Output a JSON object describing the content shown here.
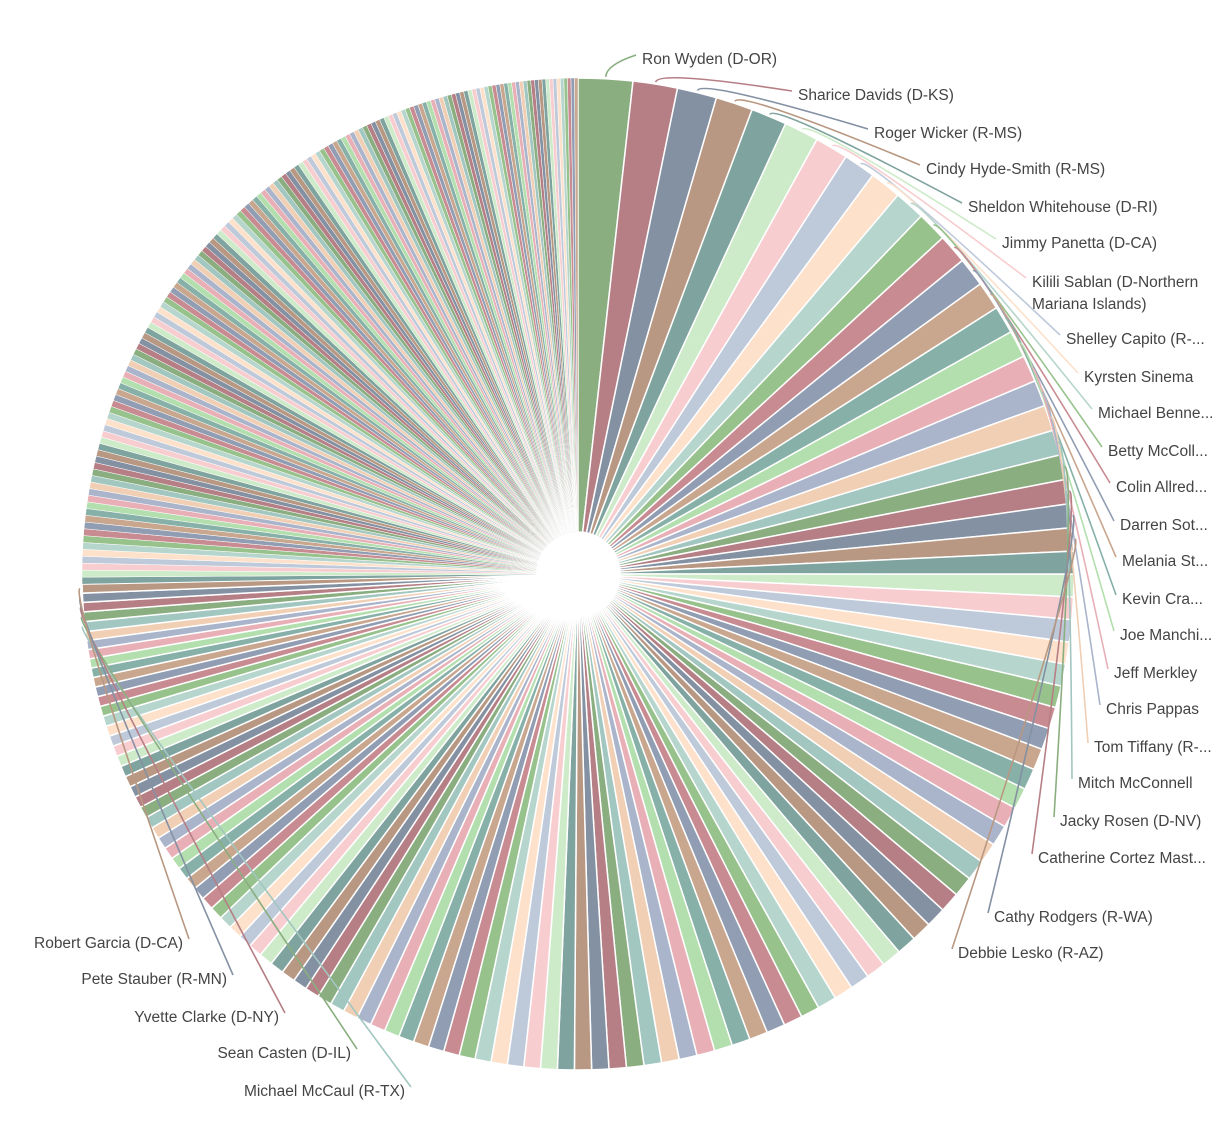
{
  "chart_data": {
    "type": "pie",
    "title": "",
    "hole": true,
    "legend": "none",
    "palette": [
      "#8aae80",
      "#b67f86",
      "#8491a3",
      "#b89882",
      "#7fa39e",
      "#cdebc9",
      "#f8cdd0",
      "#bec9da",
      "#fde1cb",
      "#b5d5cd",
      "#97c28c",
      "#c98b92",
      "#919db3",
      "#c9a68e",
      "#86b0a8",
      "#b2dfad",
      "#e8b0b6",
      "#aab4cb",
      "#f0cfb4",
      "#a2c6c0"
    ],
    "labeled_slices": {
      "right": [
        {
          "label": "Ron Wyden (D-OR)",
          "value": 2.2
        },
        {
          "label": "Sharice Davids (D-KS)",
          "value": 1.8
        },
        {
          "label": "Roger Wicker (R-MS)",
          "value": 1.6
        },
        {
          "label": "Cindy Hyde-Smith (R-MS)",
          "value": 1.5
        },
        {
          "label": "Sheldon Whitehouse (D-RI)",
          "value": 1.45
        },
        {
          "label": "Jimmy Panetta (D-CA)",
          "value": 1.4
        },
        {
          "label": "Kilili Sablan (D-Northern\nMariana Islands)",
          "value": 1.35
        },
        {
          "label": "Shelley Capito (R-...",
          "value": 1.3
        },
        {
          "label": "Kyrsten Sinema",
          "value": 1.28
        },
        {
          "label": "Michael Benne...",
          "value": 1.25
        },
        {
          "label": "Betty McColl...",
          "value": 1.22
        },
        {
          "label": "Colin Allred...",
          "value": 1.2
        },
        {
          "label": "Darren Sot...",
          "value": 1.18
        },
        {
          "label": "Melania St...",
          "value": 1.15
        },
        {
          "label": "Kevin Cra...",
          "value": 1.12
        },
        {
          "label": "Joe Manchi...",
          "value": 1.1
        },
        {
          "label": "Jeff Merkley",
          "value": 1.08
        },
        {
          "label": "Chris Pappas",
          "value": 1.06
        },
        {
          "label": "Tom Tiffany (R-...",
          "value": 1.04
        },
        {
          "label": "Mitch McConnell",
          "value": 1.02
        },
        {
          "label": "Jacky Rosen (D-NV)",
          "value": 1.0
        },
        {
          "label": "Catherine Cortez Mast...",
          "value": 0.98
        },
        {
          "label": "Cathy Rodgers (R-WA)",
          "value": 0.96
        },
        {
          "label": "Debbie Lesko (R-AZ)",
          "value": 0.94
        }
      ],
      "left": [
        {
          "label": "Michael McCaul (R-TX)",
          "value": 0.4
        },
        {
          "label": "Sean Casten (D-IL)",
          "value": 0.39
        },
        {
          "label": "Yvette Clarke (D-NY)",
          "value": 0.38
        },
        {
          "label": "Pete Stauber (R-MN)",
          "value": 0.37
        },
        {
          "label": "Robert Garcia (D-CA)",
          "value": 0.36
        }
      ]
    },
    "unlabeled_slices": {
      "count_medium": 95,
      "medium_value_start": 0.92,
      "medium_value_end": 0.36,
      "count_thin": 150,
      "thin_value_start": 0.28,
      "thin_value_end": 0.14
    }
  }
}
